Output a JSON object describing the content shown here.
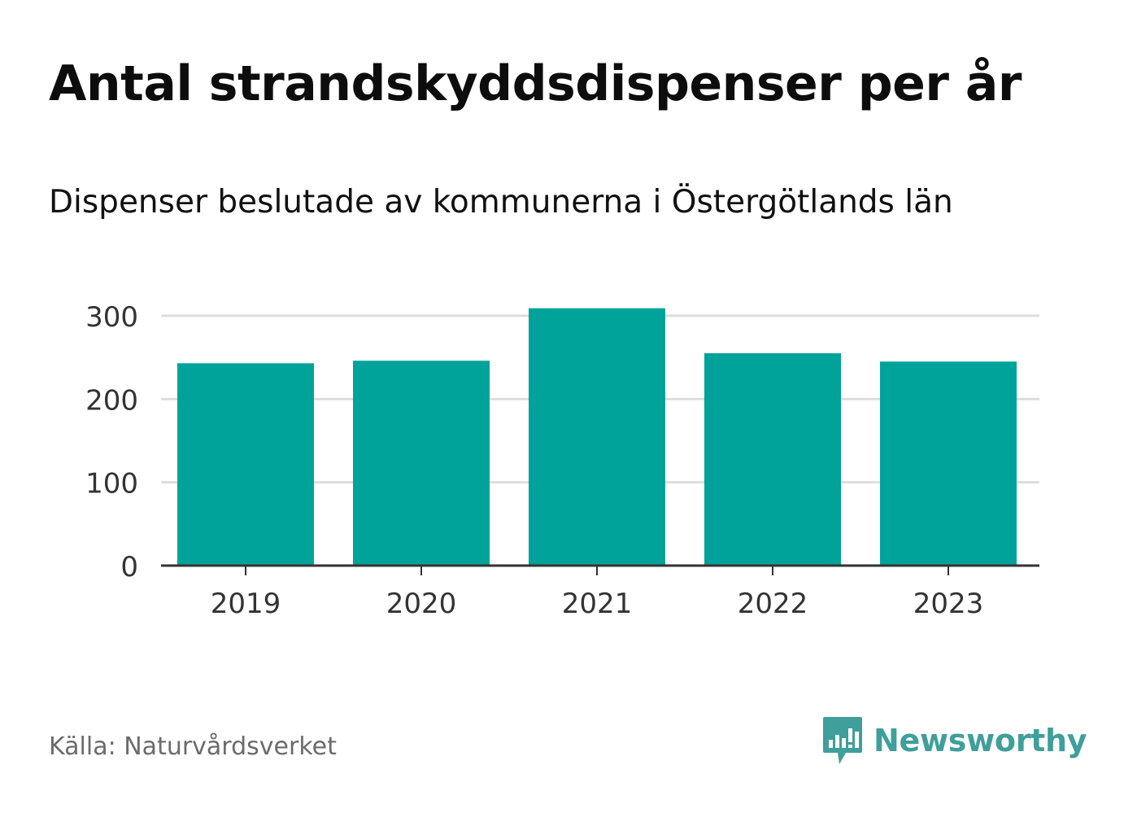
{
  "header": {
    "title": "Antal strandskyddsdispenser per år",
    "subtitle": "Dispenser beslutade av kommunerna i Östergötlands län"
  },
  "footer": {
    "source": "Källa: Naturvårdsverket",
    "brand": "Newsworthy"
  },
  "colors": {
    "bar": "#00a39a",
    "grid": "#dddddd",
    "axis": "#333333",
    "brand": "#3f9f9a"
  },
  "chart_data": {
    "type": "bar",
    "title": "Antal strandskyddsdispenser per år",
    "subtitle": "Dispenser beslutade av kommunerna i Östergötlands län",
    "xlabel": "",
    "ylabel": "",
    "categories": [
      "2019",
      "2020",
      "2021",
      "2022",
      "2023"
    ],
    "values": [
      243,
      246,
      309,
      255,
      245
    ],
    "ylim": [
      0,
      300
    ],
    "yticks": [
      0,
      100,
      200,
      300
    ],
    "grid": true,
    "legend": "none"
  }
}
